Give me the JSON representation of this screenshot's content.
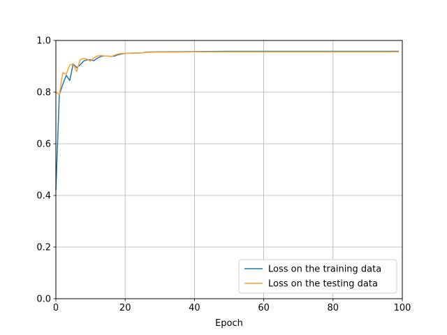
{
  "chart_data": {
    "type": "line",
    "title": "",
    "xlabel": "Epoch",
    "ylabel": "",
    "xlim": [
      0,
      100
    ],
    "ylim": [
      0.0,
      1.0
    ],
    "xticks": [
      "0",
      "20",
      "40",
      "60",
      "80",
      "100"
    ],
    "yticks": [
      "0.0",
      "0.2",
      "0.4",
      "0.6",
      "0.8",
      "1.0"
    ],
    "grid": true,
    "legend_position": "lower-right",
    "series": [
      {
        "name": "Loss on the training data",
        "color": "#1f77b4",
        "x": [
          0,
          1,
          2,
          3,
          4,
          5,
          6,
          7,
          8,
          9,
          10,
          11,
          12,
          13,
          14,
          15,
          16,
          17,
          18,
          19,
          20,
          22,
          25,
          26,
          30,
          40,
          50,
          60,
          70,
          80,
          90,
          99
        ],
        "y": [
          0.42,
          0.79,
          0.83,
          0.865,
          0.845,
          0.91,
          0.895,
          0.905,
          0.92,
          0.925,
          0.925,
          0.922,
          0.932,
          0.938,
          0.94,
          0.94,
          0.938,
          0.94,
          0.945,
          0.948,
          0.95,
          0.951,
          0.952,
          0.955,
          0.956,
          0.957,
          0.958,
          0.958,
          0.958,
          0.958,
          0.958,
          0.958
        ]
      },
      {
        "name": "Loss on the testing data",
        "color": "#ff9f2a",
        "x": [
          0,
          1,
          2,
          3,
          4,
          5,
          6,
          7,
          8,
          9,
          10,
          11,
          12,
          13,
          14,
          15,
          16,
          17,
          18,
          19,
          20,
          22,
          25,
          26,
          30,
          40,
          50,
          60,
          70,
          80,
          90,
          99
        ],
        "y": [
          0.8,
          0.79,
          0.875,
          0.87,
          0.905,
          0.91,
          0.88,
          0.925,
          0.93,
          0.928,
          0.92,
          0.933,
          0.94,
          0.942,
          0.94,
          0.94,
          0.938,
          0.943,
          0.948,
          0.95,
          0.95,
          0.951,
          0.952,
          0.954,
          0.955,
          0.956,
          0.956,
          0.956,
          0.956,
          0.956,
          0.956,
          0.956
        ]
      }
    ]
  }
}
